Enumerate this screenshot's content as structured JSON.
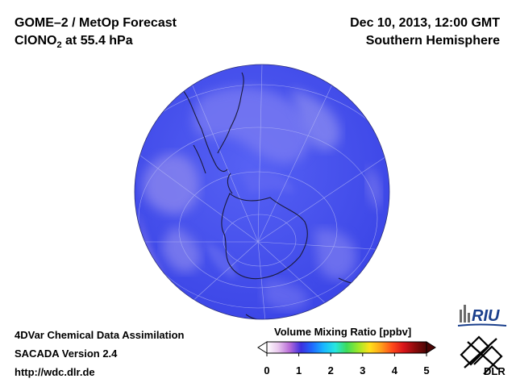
{
  "header": {
    "title_line1": "GOME–2 / MetOp Forecast",
    "species": "ClONO",
    "species_subscript": "2",
    "level": " at 55.4 hPa",
    "date": "Dec 10, 2013, 12:00 GMT",
    "region": "Southern Hemisphere"
  },
  "footer": {
    "line1": "4DVar Chemical Data Assimilation",
    "line2": "SACADA Version 2.4",
    "line3": "http://wdc.dlr.de"
  },
  "colorbar": {
    "title": "Volume Mixing Ratio [ppbv]",
    "ticks": [
      "0",
      "1",
      "2",
      "3",
      "4",
      "5"
    ],
    "min": 0,
    "max": 5,
    "colors": [
      "#ffffff",
      "#e9c7ee",
      "#b86bd8",
      "#3c2fe0",
      "#1e6bff",
      "#19b8ff",
      "#27e6e0",
      "#3ddc5a",
      "#9be82a",
      "#ffe21a",
      "#ffa01a",
      "#ff4a1a",
      "#d8141a",
      "#8c0b0b",
      "#4a0505"
    ]
  },
  "logos": {
    "riu": "RIU",
    "dlr": "DLR"
  },
  "map": {
    "projection": "orthographic-south-pole",
    "ocean_color": "#4a55f0",
    "field_colors": [
      "#3f48ee",
      "#5b62f2",
      "#8a8af0",
      "#b79be8"
    ]
  }
}
